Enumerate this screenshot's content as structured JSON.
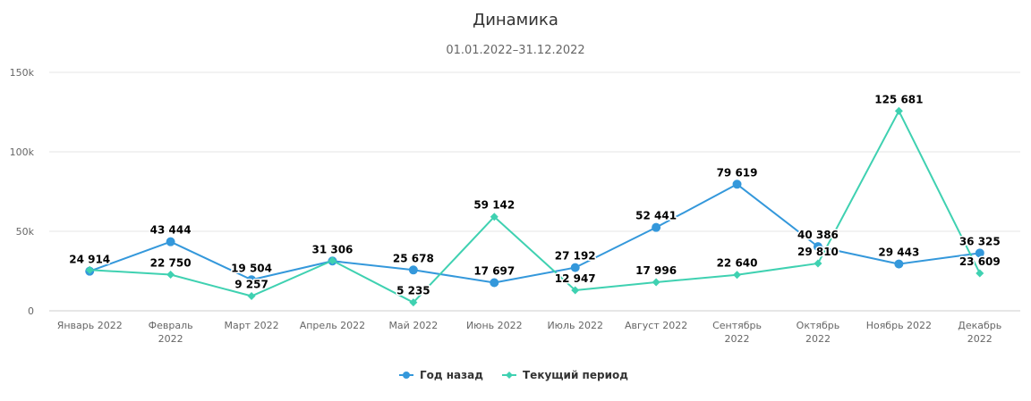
{
  "chart_data": {
    "type": "line",
    "title": "Динамика",
    "subtitle": "01.01.2022–31.12.2022",
    "xlabel": "",
    "ylabel": "",
    "ylim": [
      0,
      150000
    ],
    "yticks": [
      {
        "value": 0,
        "label": "0"
      },
      {
        "value": 50000,
        "label": "50k"
      },
      {
        "value": 100000,
        "label": "100k"
      },
      {
        "value": 150000,
        "label": "150k"
      }
    ],
    "categories": [
      [
        "Январь 2022"
      ],
      [
        "Февраль",
        "2022"
      ],
      [
        "Март 2022"
      ],
      [
        "Апрель 2022"
      ],
      [
        "Май 2022"
      ],
      [
        "Июнь 2022"
      ],
      [
        "Июль 2022"
      ],
      [
        "Август 2022"
      ],
      [
        "Сентябрь",
        "2022"
      ],
      [
        "Октябрь",
        "2022"
      ],
      [
        "Ноябрь 2022"
      ],
      [
        "Декабрь",
        "2022"
      ]
    ],
    "grid": true,
    "legend_position": "bottom",
    "series": [
      {
        "name": "Год назад",
        "color": "#3498db",
        "marker": "circle",
        "values": [
          24914,
          43444,
          19504,
          31306,
          25678,
          17697,
          27192,
          52441,
          79619,
          40386,
          29443,
          36325
        ],
        "labels": [
          "24 914",
          "43 444",
          "19 504",
          "31 306",
          "25 678",
          "17 697",
          "27 192",
          "52 441",
          "79 619",
          "40 386",
          "29 443",
          "36 325"
        ]
      },
      {
        "name": "Текущий период",
        "color": "#3fd1b1",
        "marker": "diamond",
        "values": [
          25700,
          22750,
          9257,
          31600,
          5235,
          59142,
          12947,
          17996,
          22640,
          29810,
          125681,
          23609
        ],
        "labels": [
          "",
          "22 750",
          "9 257",
          "",
          "5 235",
          "59 142",
          "12 947",
          "17 996",
          "22 640",
          "29 810",
          "125 681",
          "23 609"
        ]
      }
    ]
  }
}
